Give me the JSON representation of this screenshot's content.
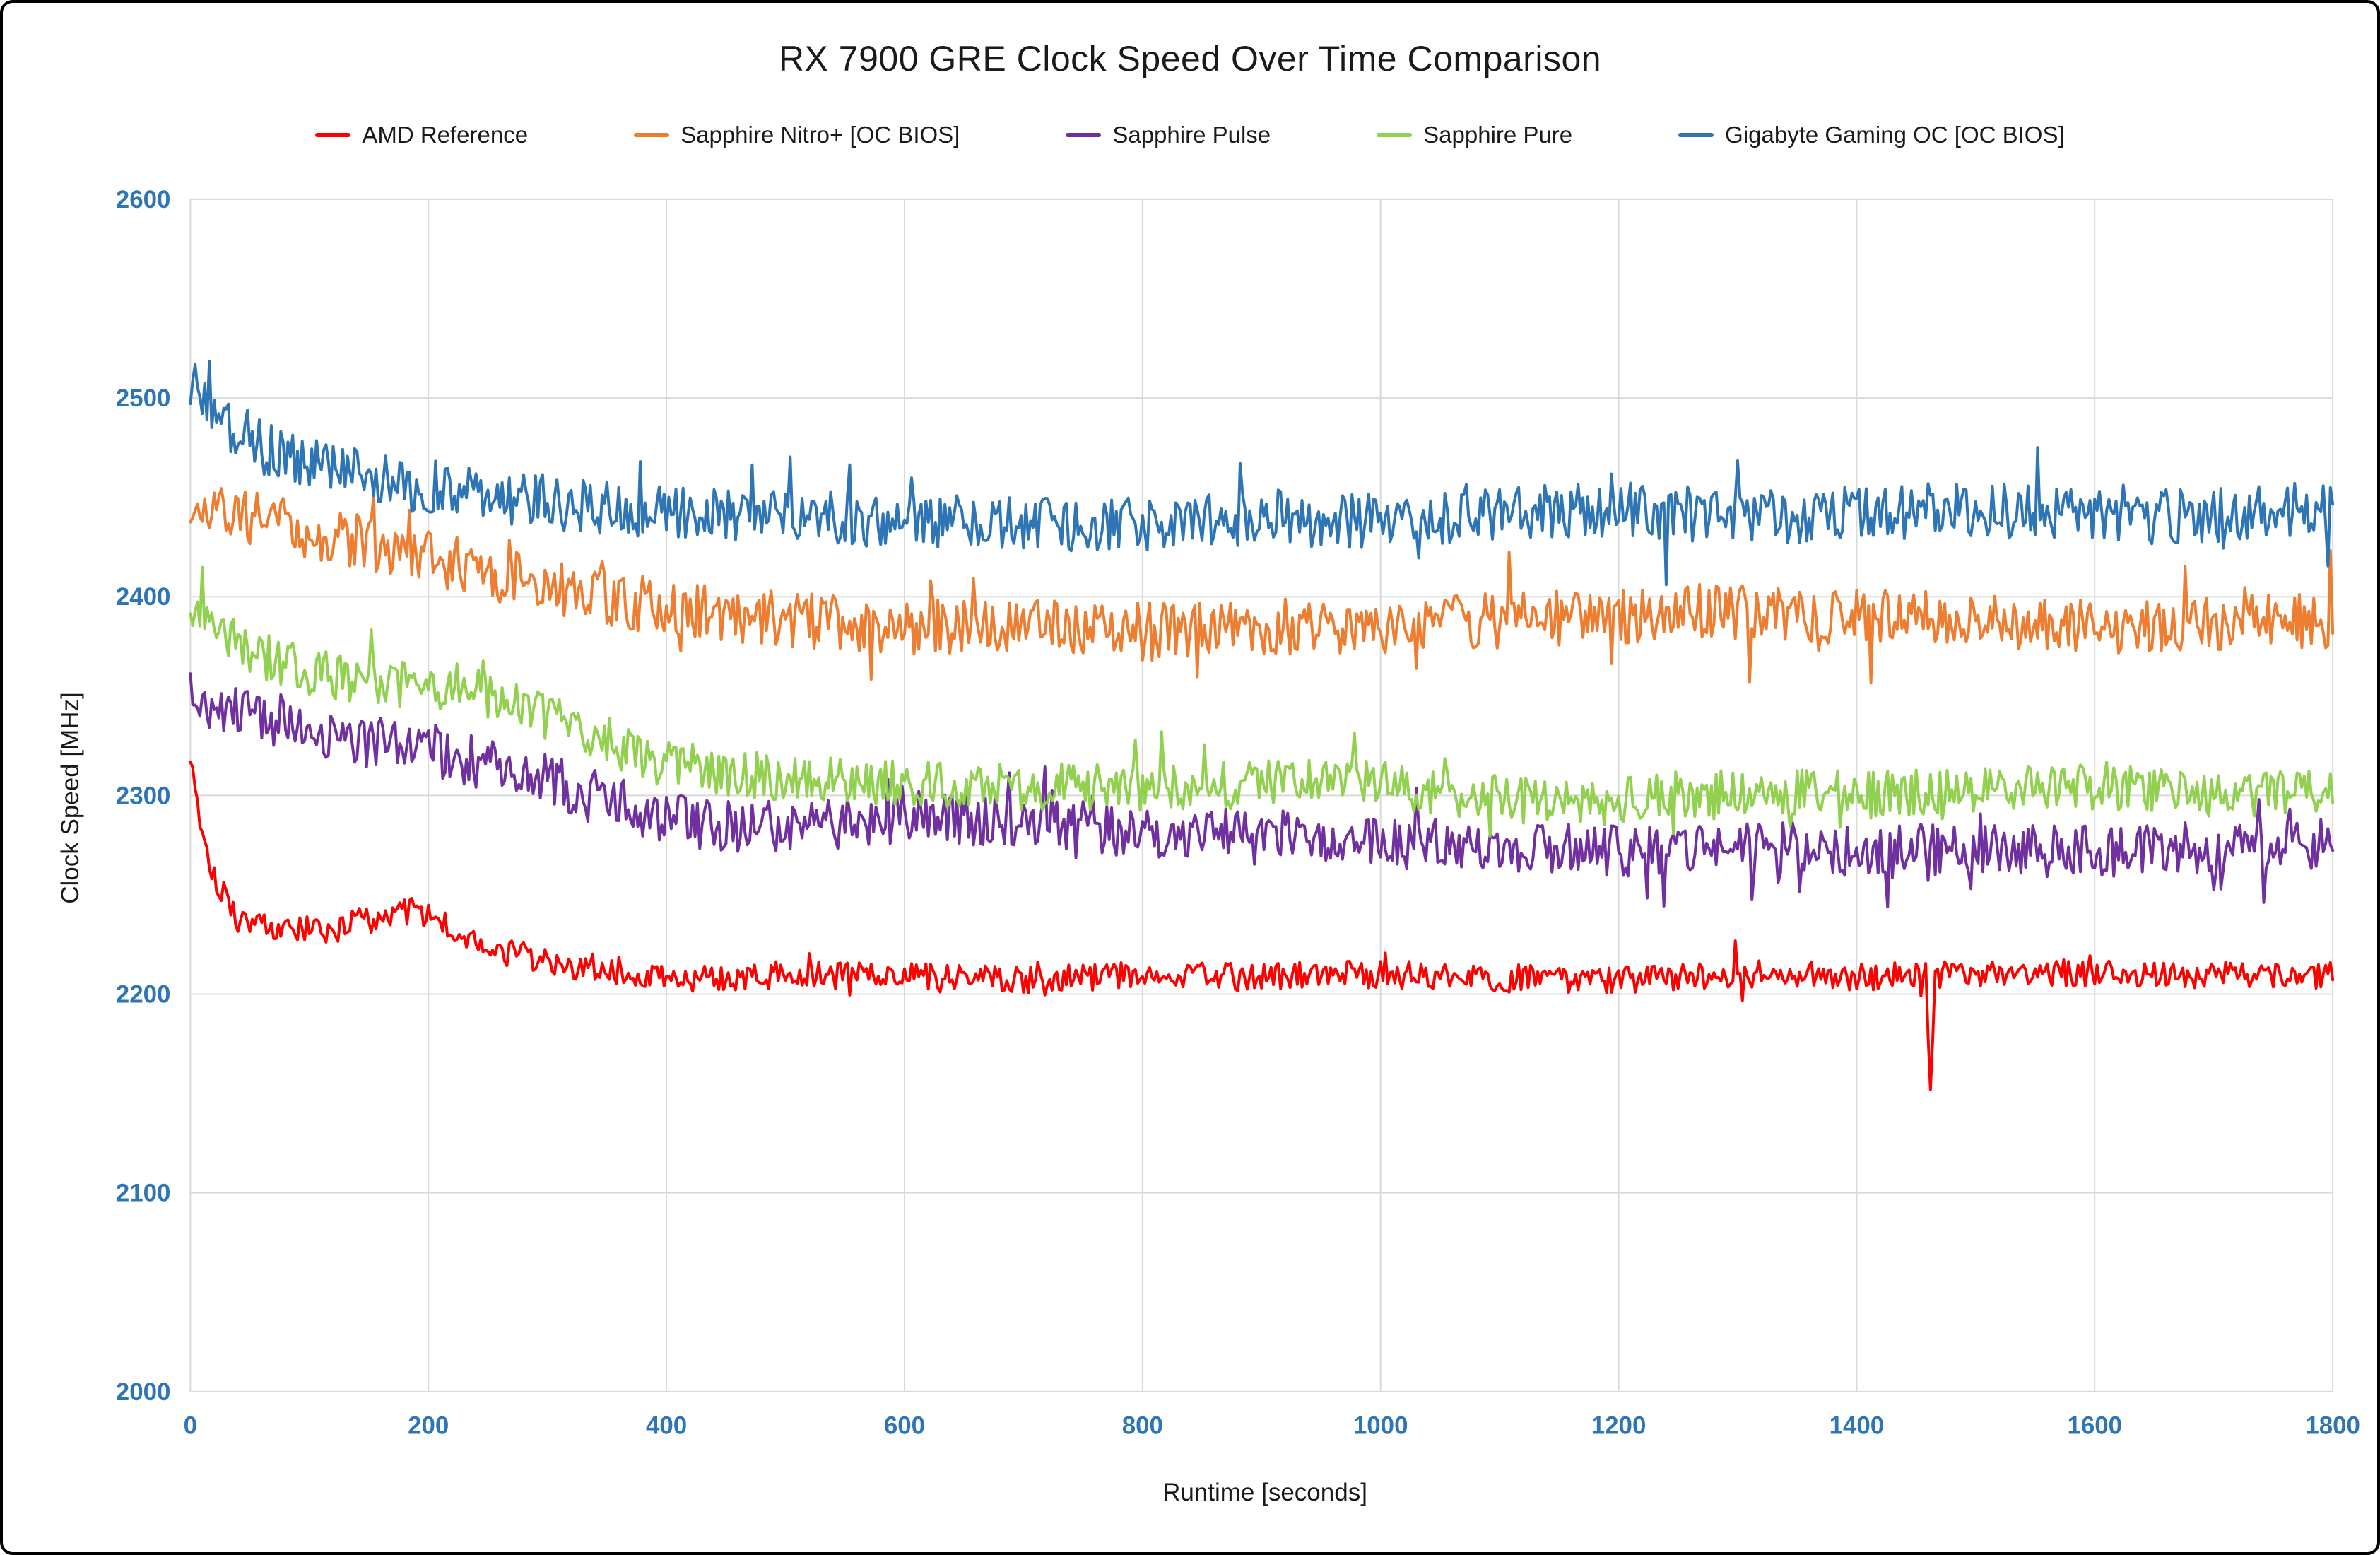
{
  "chart_data": {
    "type": "line",
    "title": "RX 7900 GRE Clock Speed Over Time Comparison",
    "xlabel": "Runtime [seconds]",
    "ylabel": "Clock Speed [MHz]",
    "xlim": [
      0,
      1800
    ],
    "ylim": [
      2000,
      2600
    ],
    "x_ticks": [
      0,
      200,
      400,
      600,
      800,
      1000,
      1200,
      1400,
      1600,
      1800
    ],
    "y_ticks": [
      2000,
      2100,
      2200,
      2300,
      2400,
      2500,
      2600
    ],
    "grid": true,
    "grid_color": "#d9d9d9",
    "tick_color": "#2e75b6",
    "legend_position": "top",
    "sample_step_seconds": 2,
    "series": [
      {
        "name": "AMD Reference",
        "color": "#ff0000",
        "noise": 7,
        "trend": [
          [
            0,
            2322
          ],
          [
            8,
            2288
          ],
          [
            20,
            2260
          ],
          [
            40,
            2238
          ],
          [
            80,
            2232
          ],
          [
            120,
            2232
          ],
          [
            160,
            2240
          ],
          [
            190,
            2243
          ],
          [
            220,
            2232
          ],
          [
            260,
            2222
          ],
          [
            300,
            2216
          ],
          [
            360,
            2212
          ],
          [
            420,
            2208
          ],
          [
            500,
            2210
          ],
          [
            600,
            2209
          ],
          [
            700,
            2207
          ],
          [
            800,
            2210
          ],
          [
            900,
            2209
          ],
          [
            1000,
            2210
          ],
          [
            1100,
            2208
          ],
          [
            1200,
            2207
          ],
          [
            1300,
            2210
          ],
          [
            1400,
            2209
          ],
          [
            1500,
            2210
          ],
          [
            1600,
            2211
          ],
          [
            1700,
            2209
          ],
          [
            1800,
            2210
          ]
        ],
        "dips": [
          {
            "x": 1462,
            "y": 2152
          }
        ]
      },
      {
        "name": "Sapphire Nitro+ [OC BIOS]",
        "color": "#ed7d31",
        "noise": 14,
        "trend": [
          [
            0,
            2448
          ],
          [
            60,
            2438
          ],
          [
            120,
            2430
          ],
          [
            200,
            2420
          ],
          [
            280,
            2408
          ],
          [
            360,
            2398
          ],
          [
            440,
            2392
          ],
          [
            520,
            2388
          ],
          [
            600,
            2385
          ],
          [
            700,
            2385
          ],
          [
            800,
            2383
          ],
          [
            900,
            2385
          ],
          [
            1000,
            2385
          ],
          [
            1100,
            2388
          ],
          [
            1200,
            2390
          ],
          [
            1300,
            2392
          ],
          [
            1400,
            2390
          ],
          [
            1500,
            2388
          ],
          [
            1600,
            2385
          ],
          [
            1700,
            2387
          ],
          [
            1800,
            2388
          ]
        ]
      },
      {
        "name": "Sapphire Pulse",
        "color": "#7030a0",
        "noise": 13,
        "trend": [
          [
            0,
            2350
          ],
          [
            60,
            2338
          ],
          [
            120,
            2330
          ],
          [
            200,
            2322
          ],
          [
            280,
            2312
          ],
          [
            340,
            2300
          ],
          [
            400,
            2288
          ],
          [
            460,
            2284
          ],
          [
            540,
            2286
          ],
          [
            620,
            2290
          ],
          [
            700,
            2286
          ],
          [
            800,
            2282
          ],
          [
            900,
            2280
          ],
          [
            1000,
            2276
          ],
          [
            1100,
            2274
          ],
          [
            1200,
            2272
          ],
          [
            1300,
            2273
          ],
          [
            1400,
            2274
          ],
          [
            1500,
            2272
          ],
          [
            1600,
            2272
          ],
          [
            1700,
            2274
          ],
          [
            1800,
            2276
          ]
        ]
      },
      {
        "name": "Sapphire Pure",
        "color": "#92d050",
        "noise": 12,
        "trend": [
          [
            0,
            2395
          ],
          [
            40,
            2375
          ],
          [
            100,
            2362
          ],
          [
            160,
            2357
          ],
          [
            220,
            2355
          ],
          [
            280,
            2345
          ],
          [
            340,
            2328
          ],
          [
            400,
            2316
          ],
          [
            480,
            2310
          ],
          [
            560,
            2306
          ],
          [
            640,
            2305
          ],
          [
            720,
            2304
          ],
          [
            800,
            2304
          ],
          [
            900,
            2307
          ],
          [
            1000,
            2306
          ],
          [
            1100,
            2298
          ],
          [
            1200,
            2297
          ],
          [
            1300,
            2303
          ],
          [
            1400,
            2300
          ],
          [
            1500,
            2302
          ],
          [
            1600,
            2304
          ],
          [
            1700,
            2300
          ],
          [
            1800,
            2302
          ]
        ]
      },
      {
        "name": "Gigabyte Gaming OC [OC BIOS]",
        "color": "#2e75b6",
        "noise": 14,
        "trend": [
          [
            0,
            2510
          ],
          [
            20,
            2492
          ],
          [
            50,
            2478
          ],
          [
            90,
            2468
          ],
          [
            140,
            2462
          ],
          [
            200,
            2455
          ],
          [
            260,
            2450
          ],
          [
            330,
            2446
          ],
          [
            400,
            2442
          ],
          [
            500,
            2440
          ],
          [
            600,
            2438
          ],
          [
            700,
            2437
          ],
          [
            800,
            2436
          ],
          [
            900,
            2440
          ],
          [
            1000,
            2438
          ],
          [
            1100,
            2442
          ],
          [
            1200,
            2444
          ],
          [
            1300,
            2440
          ],
          [
            1400,
            2442
          ],
          [
            1500,
            2444
          ],
          [
            1600,
            2440
          ],
          [
            1700,
            2441
          ],
          [
            1800,
            2444
          ]
        ]
      }
    ]
  }
}
